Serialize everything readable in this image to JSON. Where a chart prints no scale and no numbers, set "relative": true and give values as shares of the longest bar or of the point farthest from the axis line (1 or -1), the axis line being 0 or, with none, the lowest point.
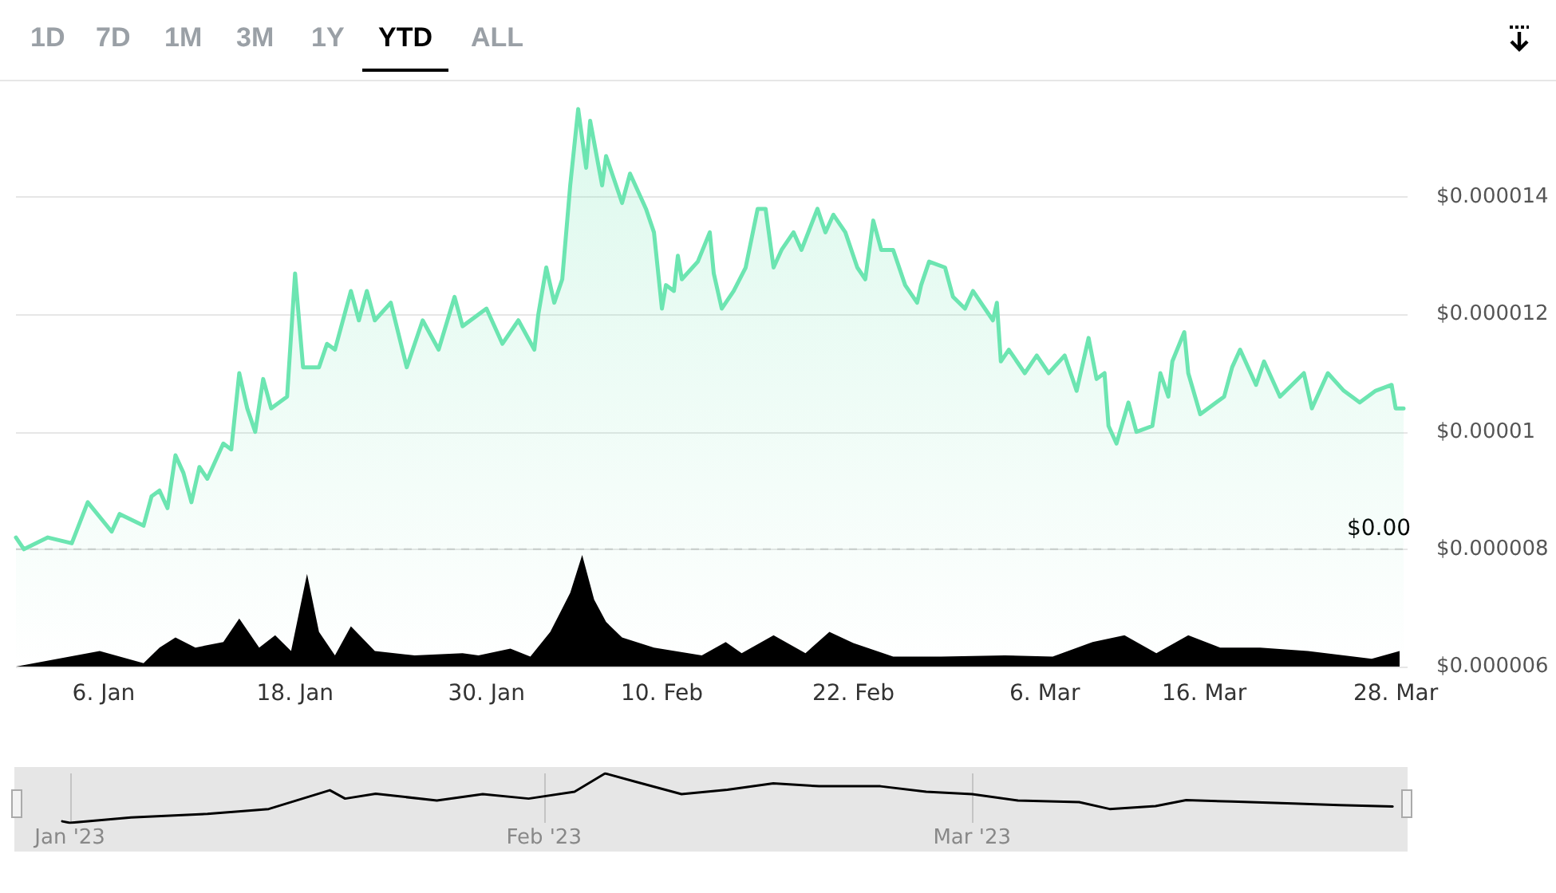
{
  "chart_data": [
    {
      "type": "area",
      "annotations": [
        "1D",
        "7D",
        "1M",
        "3M",
        "1Y",
        "YTD",
        "ALL"
      ],
      "x": [
        "2022-12-31T12:00",
        "2023-01-01",
        "2023-01-02T12:00",
        "2023-01-04",
        "2023-01-05",
        "2023-01-06T12:00",
        "2023-01-07",
        "2023-01-08T12:00",
        "2023-01-09",
        "2023-01-09T12:00",
        "2023-01-10",
        "2023-01-10T12:00",
        "2023-01-11",
        "2023-01-11T12:00",
        "2023-01-12",
        "2023-01-12T12:00",
        "2023-01-13T12:00",
        "2023-01-14",
        "2023-01-14T12:00",
        "2023-01-15",
        "2023-01-15T12:00",
        "2023-01-16",
        "2023-01-16T12:00",
        "2023-01-17T12:00",
        "2023-01-18",
        "2023-01-18T12:00",
        "2023-01-19T12:00",
        "2023-01-20",
        "2023-01-20T12:00",
        "2023-01-21T12:00",
        "2023-01-22",
        "2023-01-22T12:00",
        "2023-01-23",
        "2023-01-24",
        "2023-01-25",
        "2023-01-26",
        "2023-01-27",
        "2023-01-28",
        "2023-01-28T12:00",
        "2023-01-30",
        "2023-01-31",
        "2023-02-01",
        "2023-02-02",
        "2023-02-02T06:00",
        "2023-02-02T18:00",
        "2023-02-03T06:00",
        "2023-02-03T18:00",
        "2023-02-04T06:00",
        "2023-02-04T18:00",
        "2023-02-05T06:00",
        "2023-02-05T12:00",
        "2023-02-06T06:00",
        "2023-02-06T12:00",
        "2023-02-07T12:00",
        "2023-02-08",
        "2023-02-09",
        "2023-02-09T12:00",
        "2023-02-10",
        "2023-02-10T06:00",
        "2023-02-10T18:00",
        "2023-02-11",
        "2023-02-11T06:00",
        "2023-02-12T06:00",
        "2023-02-13",
        "2023-02-13T06:00",
        "2023-02-13T18:00",
        "2023-02-14T12:00",
        "2023-02-15T06:00",
        "2023-02-16",
        "2023-02-16T12:00",
        "2023-02-17",
        "2023-02-17T12:00",
        "2023-02-18T06:00",
        "2023-02-18T18:00",
        "2023-02-19T18:00",
        "2023-02-20T06:00",
        "2023-02-20T18:00",
        "2023-02-21T12:00",
        "2023-02-22T06:00",
        "2023-02-22T18:00",
        "2023-02-23T06:00",
        "2023-02-23T18:00",
        "2023-02-24T12:00",
        "2023-02-25T06:00",
        "2023-02-26",
        "2023-02-26T06:00",
        "2023-02-26T18:00",
        "2023-02-27T18:00",
        "2023-02-28T06:00",
        "2023-03-01",
        "2023-03-01T12:00",
        "2023-03-02T18:00",
        "2023-03-03",
        "2023-03-03T06:00",
        "2023-03-03T18:00",
        "2023-03-04T18:00",
        "2023-03-05T12:00",
        "2023-03-06T06:00",
        "2023-03-07T06:00",
        "2023-03-08",
        "2023-03-08T18:00",
        "2023-03-09T06:00",
        "2023-03-09T18:00",
        "2023-03-10",
        "2023-03-10T12:00",
        "2023-03-11T06:00",
        "2023-03-11T18:00",
        "2023-03-12T18:00",
        "2023-03-13T06:00",
        "2023-03-13T18:00",
        "2023-03-14",
        "2023-03-14T18:00",
        "2023-03-15",
        "2023-03-15T18:00",
        "2023-03-17T06:00",
        "2023-03-17T18:00",
        "2023-03-18T06:00",
        "2023-03-19T06:00",
        "2023-03-19T18:00",
        "2023-03-20T18:00",
        "2023-03-22T06:00",
        "2023-03-22T18:00",
        "2023-03-23T18:00",
        "2023-03-24T18:00",
        "2023-03-25T18:00",
        "2023-03-26T18:00",
        "2023-03-27T18:00",
        "2023-03-28",
        "2023-03-28T12:00"
      ],
      "series": [
        {
          "color": "#6ce5b1",
          "values": [
            8.2e-06,
            8e-06,
            8.2e-06,
            8.1e-06,
            8.8e-06,
            8.3e-06,
            8.6e-06,
            8.4e-06,
            8.9e-06,
            9e-06,
            8.7e-06,
            9.6e-06,
            9.3e-06,
            8.8e-06,
            9.4e-06,
            9.2e-06,
            9.8e-06,
            9.7e-06,
            1.1e-05,
            1.04e-05,
            1e-05,
            1.09e-05,
            1.04e-05,
            1.06e-05,
            1.27e-05,
            1.11e-05,
            1.11e-05,
            1.15e-05,
            1.14e-05,
            1.24e-05,
            1.19e-05,
            1.24e-05,
            1.19e-05,
            1.22e-05,
            1.11e-05,
            1.19e-05,
            1.14e-05,
            1.23e-05,
            1.18e-05,
            1.21e-05,
            1.15e-05,
            1.19e-05,
            1.14e-05,
            1.2e-05,
            1.28e-05,
            1.22e-05,
            1.26e-05,
            1.42e-05,
            1.55e-05,
            1.45e-05,
            1.53e-05,
            1.42e-05,
            1.47e-05,
            1.39e-05,
            1.44e-05,
            1.38e-05,
            1.34e-05,
            1.21e-05,
            1.25e-05,
            1.24e-05,
            1.3e-05,
            1.26e-05,
            1.29e-05,
            1.34e-05,
            1.27e-05,
            1.21e-05,
            1.24e-05,
            1.28e-05,
            1.38e-05,
            1.38e-05,
            1.28e-05,
            1.31e-05,
            1.34e-05,
            1.31e-05,
            1.38e-05,
            1.34e-05,
            1.37e-05,
            1.34e-05,
            1.28e-05,
            1.26e-05,
            1.36e-05,
            1.31e-05,
            1.31e-05,
            1.25e-05,
            1.22e-05,
            1.25e-05,
            1.29e-05,
            1.28e-05,
            1.23e-05,
            1.21e-05,
            1.24e-05,
            1.19e-05,
            1.22e-05,
            1.12e-05,
            1.14e-05,
            1.1e-05,
            1.13e-05,
            1.1e-05,
            1.13e-05,
            1.07e-05,
            1.16e-05,
            1.09e-05,
            1.1e-05,
            1.01e-05,
            9.8e-06,
            1.05e-05,
            1e-05,
            1.01e-05,
            1.1e-05,
            1.06e-05,
            1.12e-05,
            1.17e-05,
            1.1e-05,
            1.03e-05,
            1.06e-05,
            1.11e-05,
            1.14e-05,
            1.08e-05,
            1.12e-05,
            1.06e-05,
            1.1e-05,
            1.04e-05,
            1.1e-05,
            1.07e-05,
            1.05e-05,
            1.07e-05,
            1.08e-05,
            1.04e-05,
            1.04e-05
          ]
        }
      ],
      "xlim": [
        "2022-12-31T12:00",
        "2023-03-28T18:00"
      ],
      "ylim": [
        6e-06,
        1.6e-05
      ],
      "yticks": [
        {
          "value": 6e-06,
          "label": "$0.000006"
        },
        {
          "value": 8e-06,
          "label": "$0.000008"
        },
        {
          "value": 1e-05,
          "label": "$0.00001"
        },
        {
          "value": 1.2e-05,
          "label": "$0.000012"
        },
        {
          "value": 1.4e-05,
          "label": "$0.000014"
        }
      ],
      "ref_lines": [
        {
          "axis": "y",
          "value": 8e-06,
          "label": "$0.00",
          "color": "#cccccc",
          "line_style": "dashed"
        }
      ],
      "grid": "y",
      "tick_labels": "y",
      "marker": "none"
    },
    {
      "type": "area",
      "relative": true,
      "x": [
        "2022-12-31T12:00",
        "2023-01-05T18:00",
        "2023-01-08T12:00",
        "2023-01-09T12:00",
        "2023-01-10T12:00",
        "2023-01-11T18:00",
        "2023-01-13T12:00",
        "2023-01-14T12:00",
        "2023-01-15T18:00",
        "2023-01-16T18:00",
        "2023-01-17T18:00",
        "2023-01-18T18:00",
        "2023-01-19T12:00",
        "2023-01-20T12:00",
        "2023-01-21T12:00",
        "2023-01-23",
        "2023-01-25T12:00",
        "2023-01-28T12:00",
        "2023-01-29T12:00",
        "2023-01-31T12:00",
        "2023-02-01T18:00",
        "2023-02-03",
        "2023-02-04T06:00",
        "2023-02-05",
        "2023-02-05T18:00",
        "2023-02-06T12:00",
        "2023-02-07T12:00",
        "2023-02-09T12:00",
        "2023-02-12T12:00",
        "2023-02-14",
        "2023-02-15",
        "2023-02-17",
        "2023-02-19",
        "2023-02-20T12:00",
        "2023-02-22",
        "2023-02-24T12:00",
        "2023-02-27T12:00",
        "2023-03-03T12:00",
        "2023-03-06T12:00",
        "2023-03-09",
        "2023-03-11",
        "2023-03-13",
        "2023-03-15",
        "2023-03-17",
        "2023-03-19T12:00",
        "2023-03-22T12:00",
        "2023-03-26T12:00",
        "2023-03-28T06:00"
      ],
      "series": [
        {
          "color": "#000000",
          "values": [
            0,
            0.14,
            0.03,
            0.17,
            0.26,
            0.17,
            0.22,
            0.43,
            0.17,
            0.28,
            0.14,
            0.83,
            0.31,
            0.1,
            0.36,
            0.14,
            0.1,
            0.12,
            0.1,
            0.16,
            0.09,
            0.31,
            0.66,
            1,
            0.6,
            0.4,
            0.26,
            0.17,
            0.1,
            0.22,
            0.12,
            0.28,
            0.12,
            0.31,
            0.21,
            0.09,
            0.09,
            0.1,
            0.09,
            0.22,
            0.28,
            0.12,
            0.28,
            0.17,
            0.17,
            0.14,
            0.07,
            0.14
          ]
        }
      ],
      "xlim": [
        "2022-12-31T12:00",
        "2023-03-28T18:00"
      ],
      "xticks": [
        {
          "value": "2023-01-06",
          "label": "6. Jan"
        },
        {
          "value": "2023-01-18",
          "label": "18. Jan"
        },
        {
          "value": "2023-01-30",
          "label": "30. Jan"
        },
        {
          "value": "2023-02-10",
          "label": "10. Feb"
        },
        {
          "value": "2023-02-22",
          "label": "22. Feb"
        },
        {
          "value": "2023-03-06",
          "label": "6. Mar"
        },
        {
          "value": "2023-03-16",
          "label": "16. Mar"
        },
        {
          "value": "2023-03-28",
          "label": "28. Mar"
        }
      ],
      "tick_labels": "x",
      "marker": "none"
    },
    {
      "type": "line",
      "relative": true,
      "x": [
        "2022-12-31T12:00",
        "2023-01-01",
        "2023-01-05",
        "2023-01-10",
        "2023-01-14",
        "2023-01-18",
        "2023-01-19",
        "2023-01-21",
        "2023-01-25",
        "2023-01-28",
        "2023-01-31",
        "2023-02-03",
        "2023-02-05",
        "2023-02-07",
        "2023-02-10",
        "2023-02-13",
        "2023-02-16",
        "2023-02-19",
        "2023-02-23",
        "2023-02-26",
        "2023-03-01",
        "2023-03-04",
        "2023-03-08",
        "2023-03-10",
        "2023-03-13",
        "2023-03-15",
        "2023-03-18",
        "2023-03-22",
        "2023-03-25",
        "2023-03-28T12:00"
      ],
      "series": [
        {
          "color": "#000000",
          "values": [
            0.03,
            0,
            0.11,
            0.18,
            0.28,
            0.66,
            0.49,
            0.59,
            0.45,
            0.58,
            0.49,
            0.63,
            1,
            0.83,
            0.58,
            0.67,
            0.8,
            0.74,
            0.74,
            0.63,
            0.58,
            0.45,
            0.42,
            0.28,
            0.34,
            0.46,
            0.43,
            0.39,
            0.36,
            0.33
          ]
        }
      ],
      "xlim": [
        "2022-12-31T12:00",
        "2023-03-28T18:00"
      ],
      "xticks": [
        {
          "value": "2023-01-01",
          "label": "Jan '23"
        },
        {
          "value": "2023-02-01",
          "label": "Feb '23"
        },
        {
          "value": "2023-03-01",
          "label": "Mar '23"
        }
      ],
      "grid": "x",
      "tick_labels": "x",
      "marker": "none"
    }
  ]
}
